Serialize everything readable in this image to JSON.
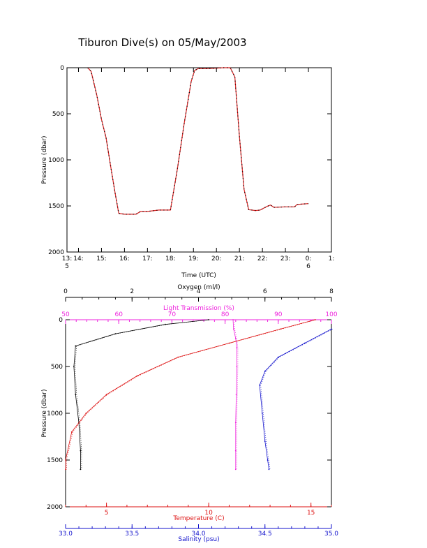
{
  "title": "Tiburon Dive(s) on 05/May/2003",
  "colors": {
    "axis": "#000000",
    "track": "#dd2222",
    "oxygen": "#000000",
    "light": "#ee22dd",
    "temperature": "#dd1111",
    "salinity": "#1111cc"
  },
  "chart_data": [
    {
      "type": "line",
      "xlabel": "Time (UTC)",
      "ylabel": "Pressure (dbar)",
      "xlim": [
        13.5,
        25
      ],
      "ylim": [
        2000,
        0
      ],
      "xtick_labels": [
        {
          "v": 13.5,
          "line1": "13:",
          "line2": "5"
        },
        {
          "v": 14,
          "line1": "14:",
          "line2": ""
        },
        {
          "v": 15,
          "line1": "15:",
          "line2": ""
        },
        {
          "v": 16,
          "line1": "16:",
          "line2": ""
        },
        {
          "v": 17,
          "line1": "17:",
          "line2": ""
        },
        {
          "v": 18,
          "line1": "18:",
          "line2": ""
        },
        {
          "v": 19,
          "line1": "19:",
          "line2": ""
        },
        {
          "v": 20,
          "line1": "20:",
          "line2": ""
        },
        {
          "v": 21,
          "line1": "21:",
          "line2": ""
        },
        {
          "v": 22,
          "line1": "22:",
          "line2": ""
        },
        {
          "v": 23,
          "line1": "23:",
          "line2": ""
        },
        {
          "v": 24,
          "line1": "0:",
          "line2": "6"
        },
        {
          "v": 25,
          "line1": "1:",
          "line2": ""
        }
      ],
      "yticks": [
        "0",
        "500",
        "1000",
        "1500",
        "2000"
      ],
      "series": [
        {
          "x": [
            14.4,
            14.55,
            14.8,
            15.0,
            15.2,
            15.4,
            15.6,
            15.75,
            16.0,
            16.3,
            16.5,
            16.7,
            17.0,
            17.5,
            18.0,
            18.3,
            18.6,
            18.9,
            19.05,
            19.2,
            19.6,
            20.0,
            20.3,
            20.6,
            20.8,
            21.0,
            21.2,
            21.4,
            21.7,
            21.9,
            22.2,
            22.35,
            22.5,
            23.0,
            23.4,
            23.5,
            23.7,
            24.0
          ],
          "y": [
            0,
            40,
            300,
            560,
            760,
            1070,
            1370,
            1580,
            1590,
            1590,
            1590,
            1560,
            1560,
            1545,
            1545,
            1100,
            600,
            150,
            30,
            10,
            10,
            5,
            0,
            0,
            100,
            750,
            1320,
            1540,
            1550,
            1545,
            1505,
            1490,
            1515,
            1510,
            1510,
            1485,
            1480,
            1475
          ]
        }
      ]
    },
    {
      "type": "scatter",
      "ylabel": "Pressure (dbar)",
      "ylim": [
        2000,
        0
      ],
      "yticks": [
        "0",
        "500",
        "1000",
        "1500",
        "2000"
      ],
      "axes": {
        "oxygen": {
          "label": "Oxygen (ml/l)",
          "range": [
            0,
            8
          ],
          "ticks": [
            "0",
            "2",
            "4",
            "6",
            "8"
          ]
        },
        "light": {
          "label": "Light Transmission (%)",
          "range": [
            50,
            100
          ],
          "ticks": [
            "50",
            "60",
            "70",
            "80",
            "90",
            "100"
          ]
        },
        "temperature": {
          "label": "Temperature (C)",
          "range": [
            3,
            16
          ],
          "ticks": [
            "5",
            "10",
            "15"
          ]
        },
        "salinity": {
          "label": "Salinity (psu)",
          "range": [
            33.0,
            35.0
          ],
          "ticks": [
            "33.0",
            "33.5",
            "34.0",
            "34.5",
            "35.0"
          ]
        }
      },
      "series": [
        {
          "name": "Oxygen (ml/l)",
          "x": [
            4.3,
            3.0,
            1.5,
            0.3,
            0.25,
            0.3,
            0.4,
            0.45,
            0.45
          ],
          "y": [
            0,
            50,
            150,
            280,
            500,
            800,
            1100,
            1400,
            1600
          ]
        },
        {
          "name": "Light Transmission (%)",
          "x": [
            81.5,
            81.6,
            82.0,
            82.2,
            82.2,
            82.1,
            82.0,
            82.0,
            82.0
          ],
          "y": [
            0,
            100,
            200,
            300,
            500,
            800,
            1100,
            1400,
            1600
          ]
        },
        {
          "name": "Temperature (C)",
          "x": [
            15.2,
            13.5,
            11.0,
            8.5,
            6.5,
            5.0,
            4.0,
            3.3,
            3.0,
            3.0
          ],
          "y": [
            0,
            100,
            250,
            400,
            600,
            800,
            1000,
            1200,
            1500,
            1600
          ]
        },
        {
          "name": "Salinity (psu)",
          "x": [
            35.0,
            34.8,
            34.6,
            34.5,
            34.46,
            34.48,
            34.5,
            34.52,
            34.53
          ],
          "y": [
            100,
            250,
            400,
            550,
            700,
            1000,
            1300,
            1500,
            1600
          ]
        }
      ]
    }
  ]
}
